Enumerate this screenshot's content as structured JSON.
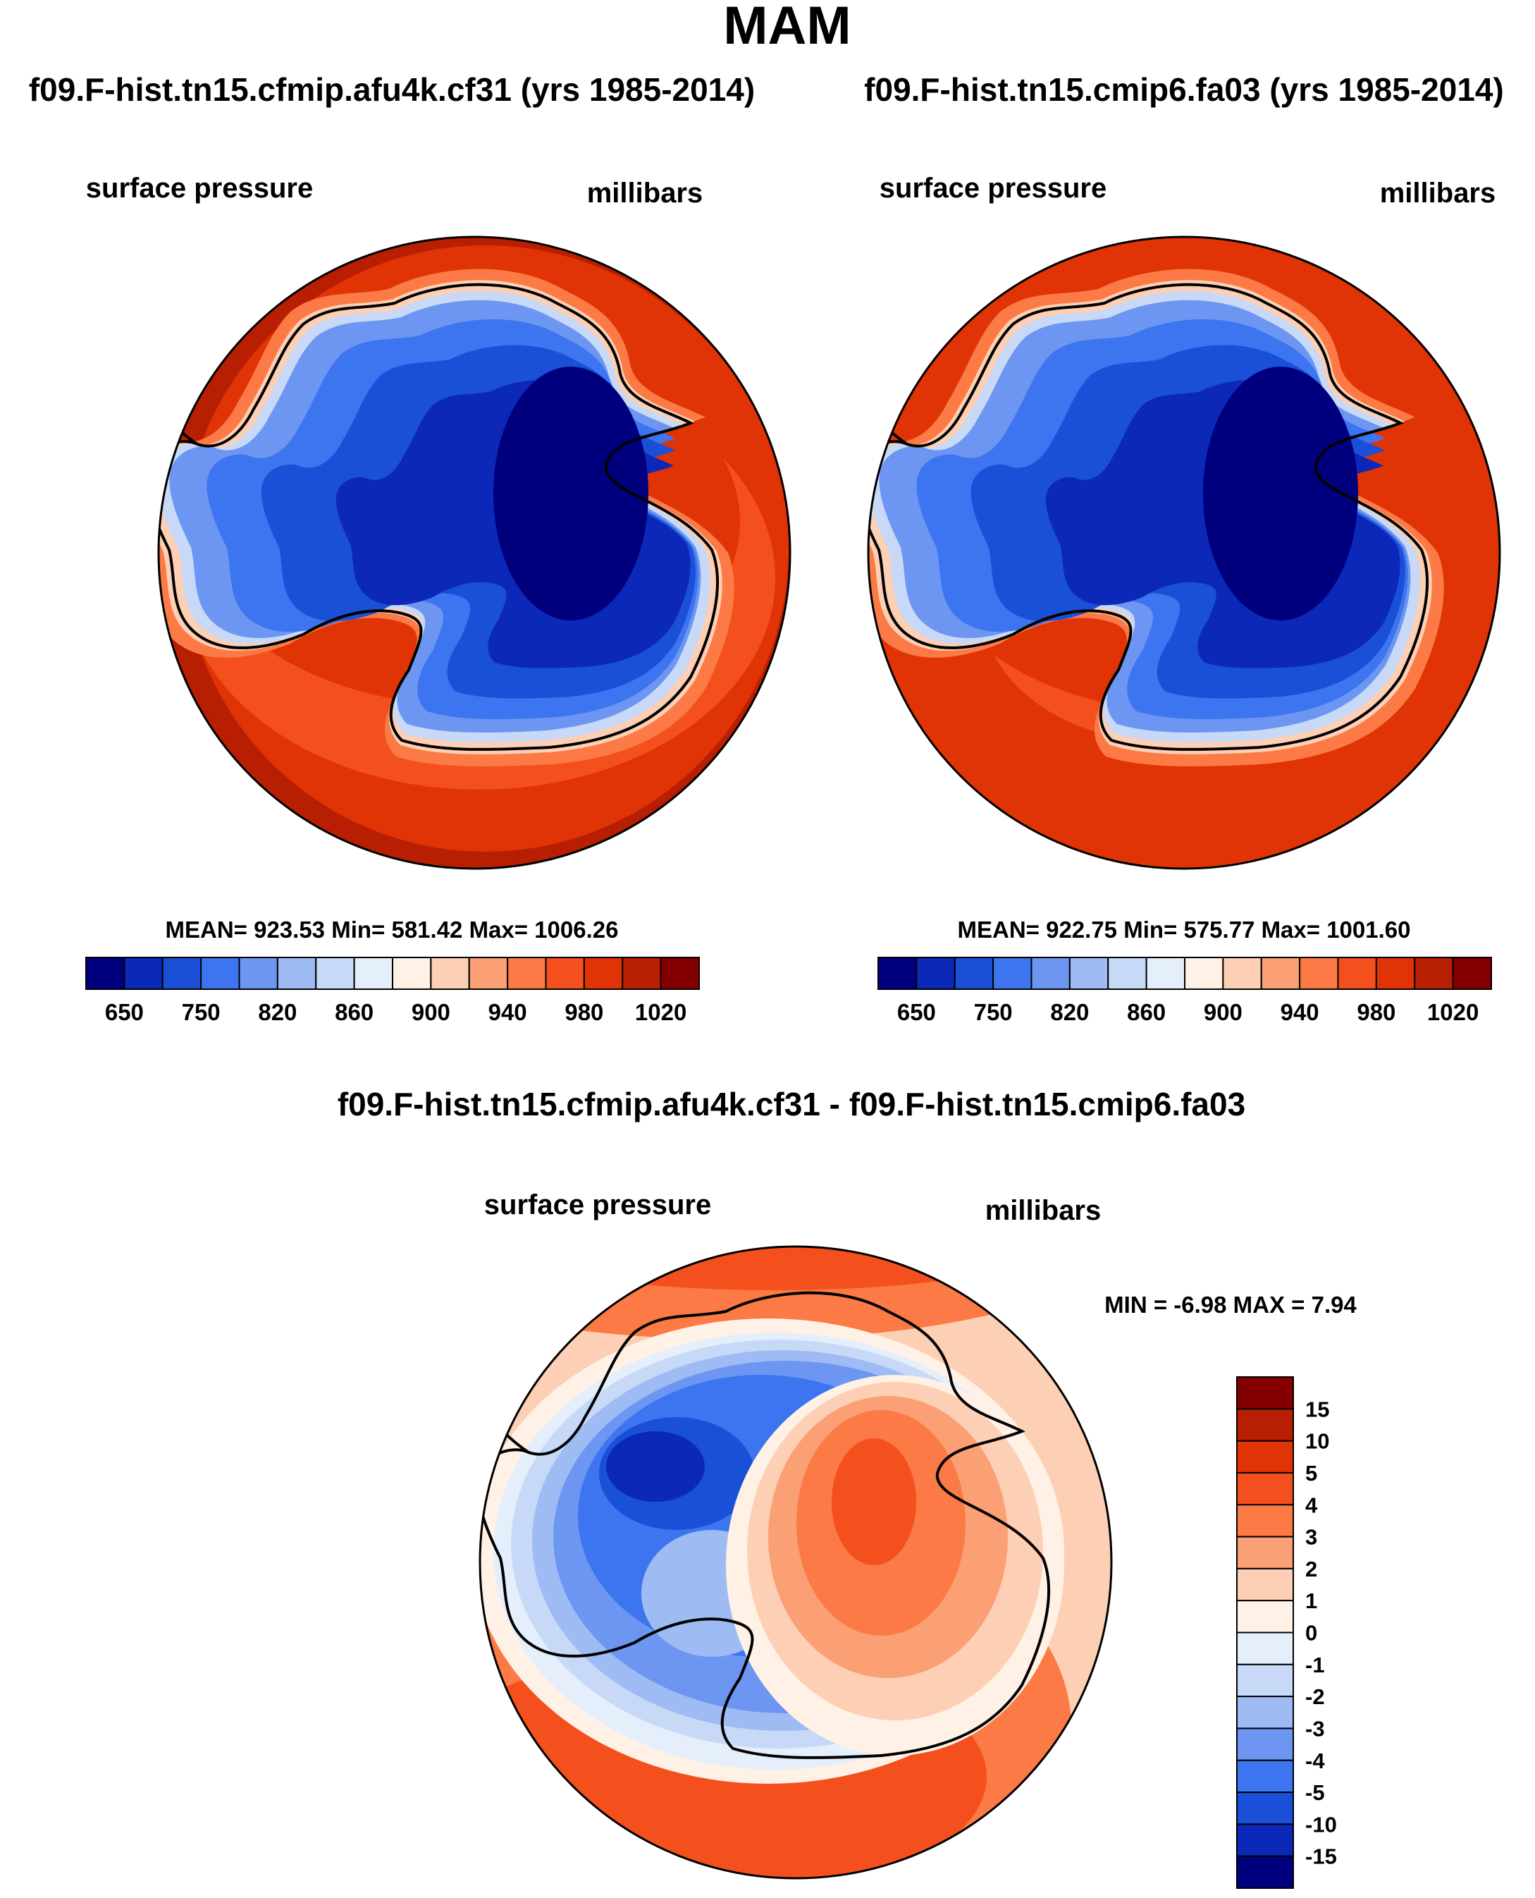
{
  "title": "MAM",
  "colors": {
    "abs_scale": [
      "#00007f",
      "#0b28b8",
      "#1a4fd8",
      "#3d74ef",
      "#6c96f2",
      "#9fbbf4",
      "#c7d9f7",
      "#e5effb",
      "#fff1e6",
      "#fdcfb4",
      "#fb9f74",
      "#fb7a45",
      "#f4501d",
      "#e03306",
      "#b81e02",
      "#840000"
    ],
    "diff_scale": [
      "#00007f",
      "#0b28b8",
      "#1a4fd8",
      "#3d74ef",
      "#6c96f2",
      "#9fbbf4",
      "#c7d9f7",
      "#e5effb",
      "#fff1e6",
      "#fdcfb4",
      "#fb9f74",
      "#fb7a45",
      "#f4501d",
      "#e03306",
      "#b81e02",
      "#840000"
    ],
    "coastline": "#000000"
  },
  "panels": [
    {
      "title": "f09.F-hist.tn15.cfmip.afu4k.cf31 (yrs 1985-2014)",
      "left_label": "surface pressure",
      "right_label": "millibars",
      "stats": "MEAN= 923.53  Min= 581.42  Max= 1006.26",
      "colorbar_labels": [
        "650",
        "750",
        "820",
        "860",
        "900",
        "940",
        "980",
        "1020"
      ]
    },
    {
      "title": "f09.F-hist.tn15.cmip6.fa03 (yrs 1985-2014)",
      "left_label": "surface pressure",
      "right_label": "millibars",
      "stats": "MEAN= 922.75  Min= 575.77  Max= 1001.60",
      "colorbar_labels": [
        "650",
        "750",
        "820",
        "860",
        "900",
        "940",
        "980",
        "1020"
      ]
    }
  ],
  "diff_panel": {
    "title": "f09.F-hist.tn15.cfmip.afu4k.cf31 - f09.F-hist.tn15.cmip6.fa03",
    "left_label": "surface pressure",
    "right_label": "millibars",
    "stats": "MIN =  -6.98 MAX =   7.94",
    "colorbar_labels": [
      "15",
      "10",
      "5",
      "4",
      "3",
      "2",
      "1",
      "0",
      "-1",
      "-2",
      "-3",
      "-4",
      "-5",
      "-10",
      "-15"
    ]
  }
}
